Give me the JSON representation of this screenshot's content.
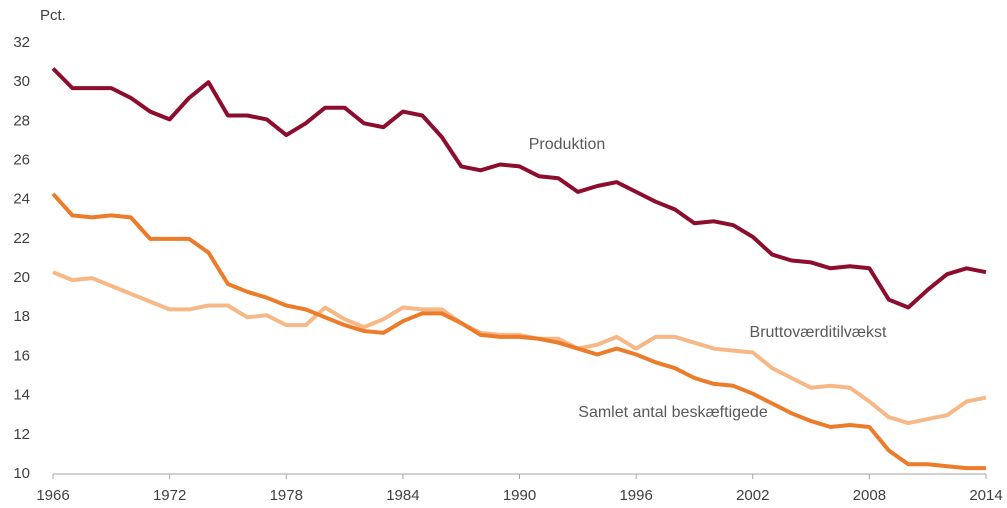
{
  "chart_data": {
    "type": "line",
    "y_label": "Pct.",
    "x": [
      1966,
      1967,
      1968,
      1969,
      1970,
      1971,
      1972,
      1973,
      1974,
      1975,
      1976,
      1977,
      1978,
      1979,
      1980,
      1981,
      1982,
      1983,
      1984,
      1985,
      1986,
      1987,
      1988,
      1989,
      1990,
      1991,
      1992,
      1993,
      1994,
      1995,
      1996,
      1997,
      1998,
      1999,
      2000,
      2001,
      2002,
      2003,
      2004,
      2005,
      2006,
      2007,
      2008,
      2009,
      2010,
      2011,
      2012,
      2013,
      2014
    ],
    "series": [
      {
        "name": "Produktion",
        "color": "#8c0d2e",
        "values": [
          30.7,
          29.7,
          29.7,
          29.7,
          29.2,
          28.5,
          28.1,
          29.2,
          30.0,
          28.3,
          28.3,
          28.1,
          27.3,
          27.9,
          28.7,
          28.7,
          27.9,
          27.7,
          28.5,
          28.3,
          27.2,
          25.7,
          25.5,
          25.8,
          25.7,
          25.2,
          25.1,
          24.4,
          24.7,
          24.9,
          24.4,
          23.9,
          23.5,
          22.8,
          22.9,
          22.7,
          22.1,
          21.2,
          20.9,
          20.8,
          20.5,
          20.6,
          20.5,
          18.9,
          18.5,
          19.4,
          20.2,
          20.5,
          20.3
        ]
      },
      {
        "name": "Bruttoværditilvækst",
        "color": "#f6b886",
        "values": [
          20.3,
          19.9,
          20.0,
          19.6,
          19.2,
          18.8,
          18.4,
          18.4,
          18.6,
          18.6,
          18.0,
          18.1,
          17.6,
          17.6,
          18.5,
          17.9,
          17.5,
          17.9,
          18.5,
          18.4,
          18.4,
          17.7,
          17.2,
          17.1,
          17.1,
          16.9,
          16.9,
          16.4,
          16.6,
          17.0,
          16.4,
          17.0,
          17.0,
          16.7,
          16.4,
          16.3,
          16.2,
          15.4,
          14.9,
          14.4,
          14.5,
          14.4,
          13.7,
          12.9,
          12.6,
          12.8,
          13.0,
          13.7,
          13.9
        ]
      },
      {
        "name": "Samlet antal beskæftigede",
        "color": "#ec7b2a",
        "values": [
          24.3,
          23.2,
          23.1,
          23.2,
          23.1,
          22.0,
          22.0,
          22.0,
          21.3,
          19.7,
          19.3,
          19.0,
          18.6,
          18.4,
          18.0,
          17.6,
          17.3,
          17.2,
          17.8,
          18.2,
          18.2,
          17.7,
          17.1,
          17.0,
          17.0,
          16.9,
          16.7,
          16.4,
          16.1,
          16.4,
          16.1,
          15.7,
          15.4,
          14.9,
          14.6,
          14.5,
          14.1,
          13.6,
          13.1,
          12.7,
          12.4,
          12.5,
          12.4,
          11.2,
          10.5,
          10.5,
          10.4,
          10.3,
          10.3
        ]
      }
    ],
    "xlim": [
      1966,
      2014
    ],
    "xticks": [
      1966,
      1972,
      1978,
      1984,
      1990,
      1996,
      2002,
      2008,
      2014
    ],
    "ylim": [
      10,
      32
    ],
    "yticks": [
      10,
      12,
      14,
      16,
      18,
      20,
      22,
      24,
      26,
      28,
      30,
      32
    ],
    "grid": false
  }
}
